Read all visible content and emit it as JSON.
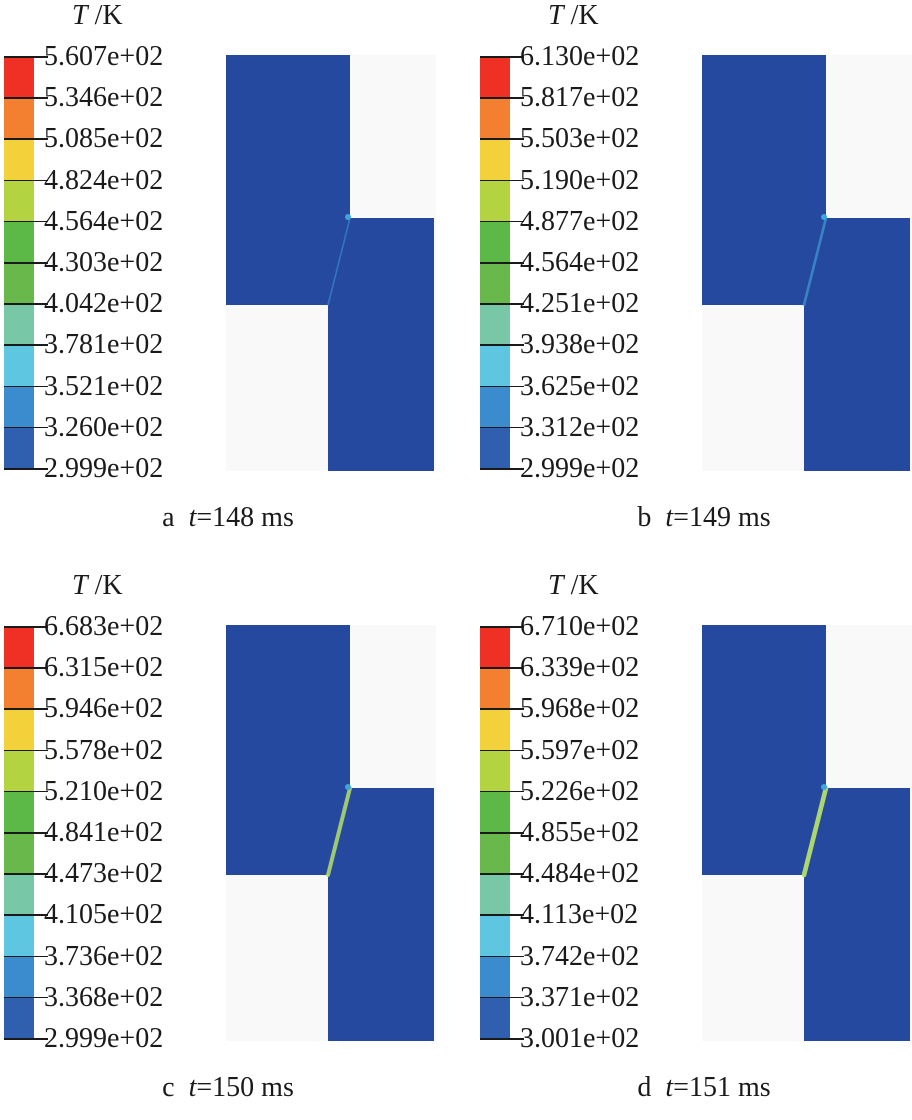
{
  "unit": {
    "symbol": "T",
    "separator": " /",
    "unit": "K"
  },
  "colorbar_colors": [
    "#ee3124",
    "#f37f30",
    "#f2d13a",
    "#b3d440",
    "#5cb947",
    "#69b84b",
    "#78c7a7",
    "#5ec6e0",
    "#3b8bcf",
    "#2f5fae",
    "#2549a0"
  ],
  "panels": [
    {
      "letter": "a",
      "caption_time": "t",
      "caption_value": "=148 ms",
      "levels": [
        "5.607e+02",
        "5.346e+02",
        "5.085e+02",
        "4.824e+02",
        "4.564e+02",
        "4.303e+02",
        "4.042e+02",
        "3.781e+02",
        "3.521e+02",
        "3.260e+02",
        "2.999e+02"
      ],
      "band_intensity": 0.15
    },
    {
      "letter": "b",
      "caption_time": "t",
      "caption_value": "=149 ms",
      "levels": [
        "6.130e+02",
        "5.817e+02",
        "5.503e+02",
        "5.190e+02",
        "4.877e+02",
        "4.564e+02",
        "4.251e+02",
        "3.938e+02",
        "3.625e+02",
        "3.312e+02",
        "2.999e+02"
      ],
      "band_intensity": 0.4
    },
    {
      "letter": "c",
      "caption_time": "t",
      "caption_value": "=150 ms",
      "levels": [
        "6.683e+02",
        "6.315e+02",
        "5.946e+02",
        "5.578e+02",
        "5.210e+02",
        "4.841e+02",
        "4.473e+02",
        "4.105e+02",
        "3.736e+02",
        "3.368e+02",
        "2.999e+02"
      ],
      "band_intensity": 0.75
    },
    {
      "letter": "d",
      "caption_time": "t",
      "caption_value": "=151 ms",
      "levels": [
        "6.710e+02",
        "6.339e+02",
        "5.968e+02",
        "5.597e+02",
        "5.226e+02",
        "4.855e+02",
        "4.484e+02",
        "4.113e+02",
        "3.742e+02",
        "3.371e+02",
        "3.001e+02"
      ],
      "band_intensity": 0.9
    }
  ],
  "colors": {
    "specimen": "#2649a0",
    "shear_band_low": "#3fa6d9",
    "shear_band_high": "#b4e06a"
  }
}
